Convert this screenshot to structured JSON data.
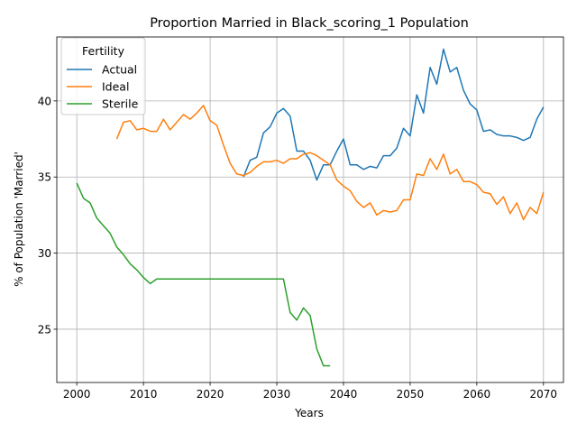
{
  "chart_data": {
    "type": "line",
    "title": "Proportion Married in Black_scoring_1 Population",
    "xlabel": "Years",
    "ylabel": "% of Population 'Married'",
    "xlim": [
      1997,
      2073
    ],
    "ylim": [
      21.5,
      44.2
    ],
    "xticks": [
      2000,
      2010,
      2020,
      2030,
      2040,
      2050,
      2060,
      2070
    ],
    "yticks": [
      25,
      30,
      35,
      40
    ],
    "grid": true,
    "legend": {
      "title": "Fertility",
      "position": "upper-left"
    },
    "series": [
      {
        "name": "Actual",
        "color": "#1f77b4",
        "x": [
          2025,
          2026,
          2027,
          2028,
          2029,
          2030,
          2031,
          2032,
          2033,
          2034,
          2035,
          2036,
          2037,
          2038,
          2039,
          2040,
          2041,
          2042,
          2043,
          2044,
          2045,
          2046,
          2047,
          2048,
          2049,
          2050,
          2051,
          2052,
          2053,
          2054,
          2055,
          2056,
          2057,
          2058,
          2059,
          2060,
          2061,
          2062,
          2063,
          2064,
          2065,
          2066,
          2067,
          2068,
          2069,
          2070
        ],
        "y": [
          35.0,
          36.1,
          36.3,
          37.9,
          38.3,
          39.2,
          39.5,
          39.0,
          36.7,
          36.7,
          36.1,
          34.8,
          35.8,
          35.8,
          36.7,
          37.5,
          35.8,
          35.8,
          35.5,
          35.7,
          35.6,
          36.4,
          36.4,
          36.9,
          38.2,
          37.7,
          40.4,
          39.2,
          42.2,
          41.1,
          43.4,
          41.9,
          42.2,
          40.7,
          39.8,
          39.4,
          38.0,
          38.1,
          37.8,
          37.7,
          37.7,
          37.6,
          37.4,
          37.6,
          38.8,
          39.6
        ]
      },
      {
        "name": "Ideal",
        "color": "#ff7f0e",
        "x": [
          2006,
          2007,
          2008,
          2009,
          2010,
          2011,
          2012,
          2013,
          2014,
          2015,
          2016,
          2017,
          2018,
          2019,
          2020,
          2021,
          2022,
          2023,
          2024,
          2025,
          2026,
          2027,
          2028,
          2029,
          2030,
          2031,
          2032,
          2033,
          2034,
          2035,
          2036,
          2037,
          2038,
          2039,
          2040,
          2041,
          2042,
          2043,
          2044,
          2045,
          2046,
          2047,
          2048,
          2049,
          2050,
          2051,
          2052,
          2053,
          2054,
          2055,
          2056,
          2057,
          2058,
          2059,
          2060,
          2061,
          2062,
          2063,
          2064,
          2065,
          2066,
          2067,
          2068,
          2069,
          2070
        ],
        "y": [
          37.5,
          38.6,
          38.7,
          38.1,
          38.2,
          38.0,
          38.0,
          38.8,
          38.1,
          38.6,
          39.1,
          38.8,
          39.2,
          39.7,
          38.7,
          38.4,
          37.1,
          35.9,
          35.2,
          35.1,
          35.3,
          35.7,
          36.0,
          36.0,
          36.1,
          35.9,
          36.2,
          36.2,
          36.5,
          36.6,
          36.4,
          36.1,
          35.8,
          34.8,
          34.4,
          34.1,
          33.4,
          33.0,
          33.3,
          32.5,
          32.8,
          32.7,
          32.8,
          33.5,
          33.5,
          35.2,
          35.1,
          36.2,
          35.5,
          36.5,
          35.2,
          35.5,
          34.7,
          34.7,
          34.5,
          34.0,
          33.9,
          33.2,
          33.7,
          32.6,
          33.3,
          32.2,
          33.0,
          32.6,
          34.0
        ]
      },
      {
        "name": "Sterile",
        "color": "#2ca02c",
        "x": [
          2000,
          2001,
          2002,
          2003,
          2004,
          2005,
          2006,
          2007,
          2008,
          2009,
          2010,
          2011,
          2012,
          2013,
          2014,
          2015,
          2016,
          2017,
          2018,
          2019,
          2020,
          2021,
          2022,
          2023,
          2024,
          2025,
          2026,
          2027,
          2028,
          2029,
          2030,
          2031,
          2032,
          2033,
          2034,
          2035,
          2036,
          2037,
          2038
        ],
        "y": [
          34.6,
          33.6,
          33.3,
          32.3,
          31.8,
          31.3,
          30.4,
          29.9,
          29.3,
          28.9,
          28.4,
          28.0,
          28.3,
          28.3,
          28.3,
          28.3,
          28.3,
          28.3,
          28.3,
          28.3,
          28.3,
          28.3,
          28.3,
          28.3,
          28.3,
          28.3,
          28.3,
          28.3,
          28.3,
          28.3,
          28.3,
          28.3,
          26.1,
          25.6,
          26.4,
          25.9,
          23.7,
          22.6,
          22.6
        ]
      }
    ]
  }
}
